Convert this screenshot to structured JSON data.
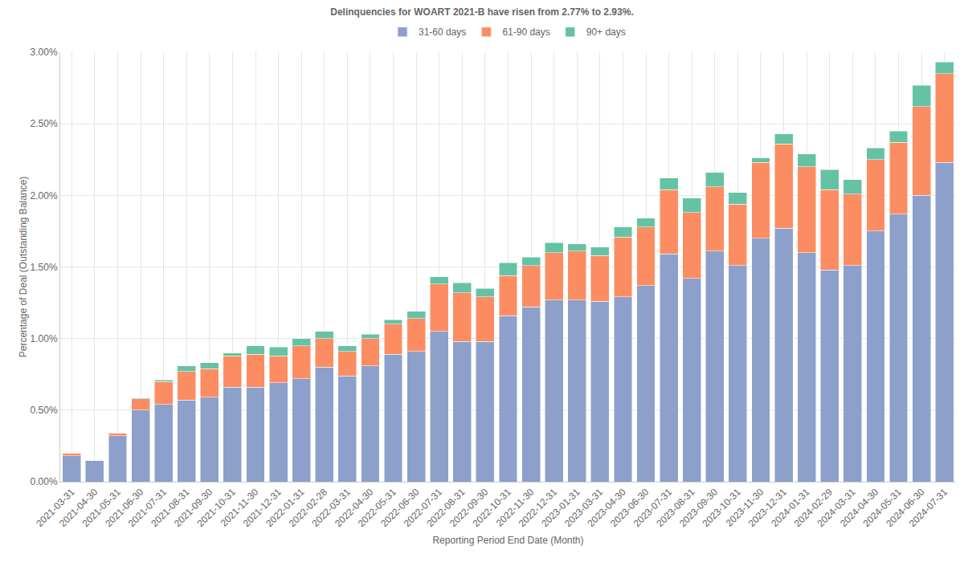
{
  "chart_data": {
    "type": "bar",
    "title": "Delinquencies for WOART 2021-B have risen from 2.77% to 2.93%.",
    "x_label": "Reporting Period End Date (Month)",
    "y_label": "Percentage of Deal (Outstanding Balance)",
    "stacked": true,
    "grid": true,
    "legend": "top",
    "categories": [
      "2021-03-31",
      "2021-04-30",
      "2021-05-31",
      "2021-06-30",
      "2021-07-31",
      "2021-08-31",
      "2021-09-30",
      "2021-10-31",
      "2021-11-30",
      "2021-12-31",
      "2022-01-31",
      "2022-02-28",
      "2022-03-31",
      "2022-04-30",
      "2022-05-31",
      "2022-06-30",
      "2022-07-31",
      "2022-08-31",
      "2022-09-30",
      "2022-10-31",
      "2022-11-30",
      "2022-12-31",
      "2023-01-31",
      "2023-03-31",
      "2023-04-30",
      "2023-06-30",
      "2023-07-31",
      "2023-08-31",
      "2023-09-30",
      "2023-10-31",
      "2023-11-30",
      "2023-12-31",
      "2024-01-31",
      "2024-02-29",
      "2024-03-31",
      "2024-04-30",
      "2024-05-31",
      "2024-06-30",
      "2024-07-31"
    ],
    "series": [
      {
        "name": "31-60 days",
        "color": "#8da0cb",
        "values": [
          0.18,
          0.15,
          0.32,
          0.5,
          0.54,
          0.57,
          0.59,
          0.66,
          0.66,
          0.69,
          0.72,
          0.8,
          0.74,
          0.81,
          0.89,
          0.91,
          1.05,
          0.98,
          0.98,
          1.16,
          1.22,
          1.27,
          1.27,
          1.26,
          1.29,
          1.37,
          1.59,
          1.42,
          1.61,
          1.51,
          1.7,
          1.77,
          1.6,
          1.48,
          1.51,
          1.75,
          1.87,
          2.0,
          2.23
        ]
      },
      {
        "name": "61-90 days",
        "color": "#fc8d62",
        "values": [
          0.02,
          0,
          0.02,
          0.08,
          0.16,
          0.2,
          0.2,
          0.22,
          0.23,
          0.19,
          0.23,
          0.2,
          0.17,
          0.19,
          0.21,
          0.23,
          0.33,
          0.34,
          0.31,
          0.28,
          0.29,
          0.33,
          0.34,
          0.32,
          0.42,
          0.41,
          0.45,
          0.46,
          0.45,
          0.43,
          0.53,
          0.59,
          0.6,
          0.56,
          0.5,
          0.5,
          0.5,
          0.62,
          0.62
        ]
      },
      {
        "name": "90+ days",
        "color": "#66c2a5",
        "values": [
          0,
          0,
          0,
          0.005,
          0.01,
          0.04,
          0.04,
          0.02,
          0.06,
          0.06,
          0.05,
          0.05,
          0.04,
          0.03,
          0.03,
          0.05,
          0.05,
          0.07,
          0.06,
          0.09,
          0.06,
          0.07,
          0.05,
          0.06,
          0.07,
          0.06,
          0.08,
          0.1,
          0.1,
          0.08,
          0.03,
          0.07,
          0.09,
          0.14,
          0.1,
          0.08,
          0.08,
          0.15,
          0.08
        ]
      }
    ],
    "ylim": [
      0,
      3
    ],
    "yticks": [
      {
        "value": 0,
        "label": "0.00%"
      },
      {
        "value": 0.5,
        "label": "0.50%"
      },
      {
        "value": 1,
        "label": "1.00%"
      },
      {
        "value": 1.5,
        "label": "1.50%"
      },
      {
        "value": 2,
        "label": "2.00%"
      },
      {
        "value": 2.5,
        "label": "2.50%"
      },
      {
        "value": 3,
        "label": "3.00%"
      }
    ]
  }
}
